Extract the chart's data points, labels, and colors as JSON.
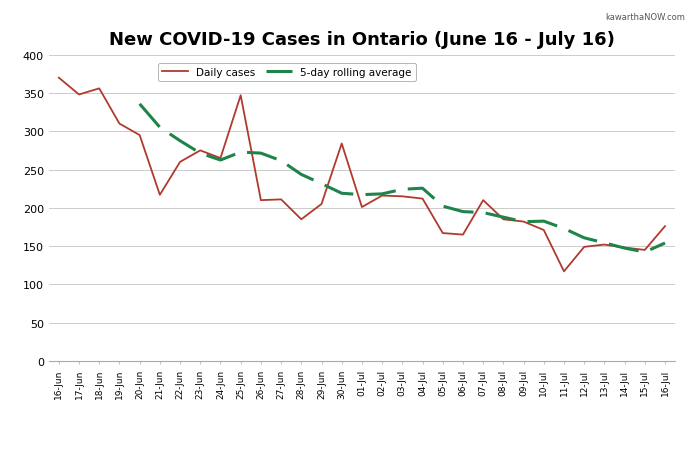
{
  "dates": [
    "16-Jun",
    "17-Jun",
    "18-Jun",
    "19-Jun",
    "20-Jun",
    "21-Jun",
    "22-Jun",
    "23-Jun",
    "24-Jun",
    "25-Jun",
    "26-Jun",
    "27-Jun",
    "28-Jun",
    "29-Jun",
    "30-Jun",
    "01-Jul",
    "02-Jul",
    "03-Jul",
    "04-Jul",
    "05-Jul",
    "06-Jul",
    "07-Jul",
    "08-Jul",
    "09-Jul",
    "10-Jul",
    "11-Jul",
    "12-Jul",
    "13-Jul",
    "14-Jul",
    "15-Jul",
    "16-Jul"
  ],
  "daily_cases": [
    370,
    348,
    356,
    310,
    295,
    217,
    260,
    275,
    265,
    347,
    210,
    211,
    185,
    205,
    284,
    201,
    216,
    215,
    212,
    167,
    165,
    210,
    185,
    182,
    171,
    117,
    149,
    152,
    148,
    145,
    176
  ],
  "line_color": "#b03a2e",
  "rolling_color": "#1e8449",
  "title": "New COVID-19 Cases in Ontario (June 16 - July 16)",
  "title_fontsize": 13,
  "legend_daily": "Daily cases",
  "legend_rolling": "5-day rolling average",
  "ylim": [
    0,
    400
  ],
  "yticks": [
    0,
    50,
    100,
    150,
    200,
    250,
    300,
    350,
    400
  ],
  "background_color": "#ffffff",
  "grid_color": "#cccccc",
  "watermark": "kawarthaNOW.com"
}
